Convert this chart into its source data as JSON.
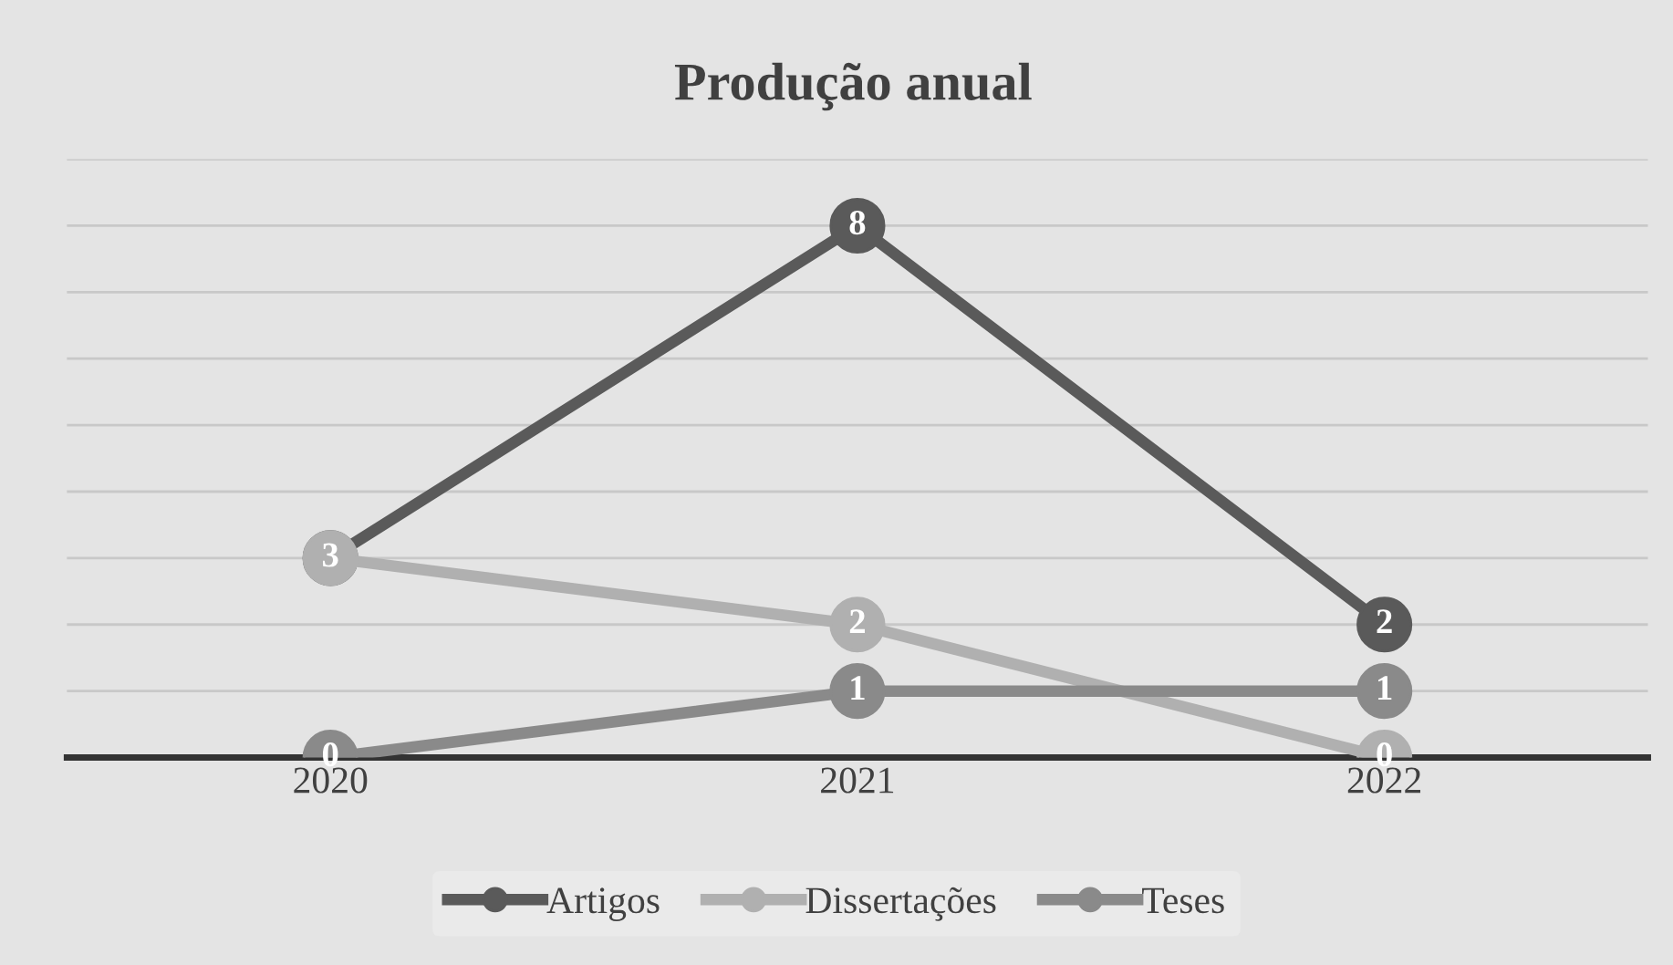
{
  "chart_data": {
    "type": "line",
    "title": "Produção anual",
    "categories": [
      "2020",
      "2021",
      "2022"
    ],
    "series": [
      {
        "name": "Artigos",
        "color": "#5a5a5a",
        "values": [
          3,
          8,
          2
        ],
        "value_labels": [
          null,
          "8",
          "2"
        ]
      },
      {
        "name": "Dissertações",
        "color": "#b0b0b0",
        "values": [
          3,
          2,
          0
        ],
        "value_labels": [
          "3",
          "2",
          "0"
        ]
      },
      {
        "name": "Teses",
        "color": "#8a8a8a",
        "values": [
          0,
          1,
          1
        ],
        "value_labels": [
          "0",
          "1",
          "1"
        ]
      }
    ],
    "grid": "y",
    "legend": "bottom",
    "marker": "circle",
    "line_style": "solid",
    "tick_labels": "x"
  }
}
